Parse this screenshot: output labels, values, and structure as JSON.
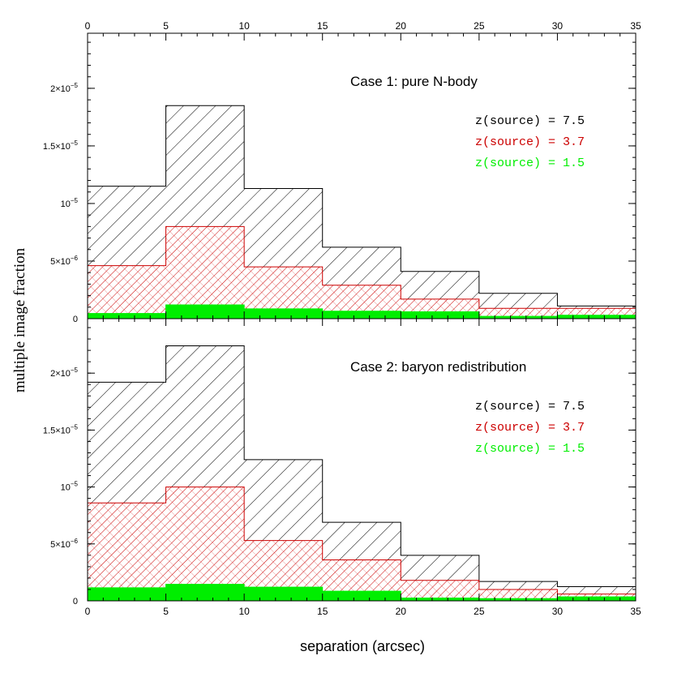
{
  "chart_data": [
    {
      "type": "histogram",
      "panel": "top",
      "title": "Case 1: pure N-body",
      "xlim": [
        0,
        35
      ],
      "ylim": [
        0,
        2.45e-05
      ],
      "xticks": [
        "0",
        "5",
        "10",
        "15",
        "20",
        "25",
        "30",
        "35"
      ],
      "yticks": [
        {
          "mant": "",
          "exp": "",
          "plain": "0",
          "value": 0
        },
        {
          "mant": "5×10",
          "exp": "−6",
          "value": 5e-06
        },
        {
          "mant": "10",
          "exp": "−5",
          "value": 1e-05
        },
        {
          "mant": "1.5×10",
          "exp": "−5",
          "value": 1.5e-05
        },
        {
          "mant": "2×10",
          "exp": "−5",
          "value": 2e-05
        }
      ],
      "bin_edges": [
        0,
        5,
        10,
        15,
        20,
        25,
        30,
        35
      ],
      "series": [
        {
          "name": "z(source) = 7.5",
          "color": "#000000",
          "hatch": "single-diagonal",
          "values": [
            1.15e-05,
            1.85e-05,
            1.13e-05,
            6.2e-06,
            4.1e-06,
            2.2e-06,
            1.1e-06
          ]
        },
        {
          "name": "z(source) = 3.7",
          "color": "#cc0000",
          "hatch": "cross-diagonal",
          "values": [
            4.6e-06,
            8e-06,
            4.5e-06,
            2.9e-06,
            1.7e-06,
            9e-07,
            9e-07
          ]
        },
        {
          "name": "z(source) = 1.5",
          "color": "#00ee00",
          "hatch": "solid",
          "values": [
            4.5e-07,
            1.2e-06,
            8.5e-07,
            6.5e-07,
            6e-07,
            2e-07,
            3e-07
          ]
        }
      ]
    },
    {
      "type": "histogram",
      "panel": "bottom",
      "title": "Case 2: baryon redistribution",
      "xlim": [
        0,
        35
      ],
      "ylim": [
        0,
        2.45e-05
      ],
      "xticks": [
        "0",
        "5",
        "10",
        "15",
        "20",
        "25",
        "30",
        "35"
      ],
      "yticks": [
        {
          "mant": "",
          "exp": "",
          "plain": "0",
          "value": 0
        },
        {
          "mant": "5×10",
          "exp": "−6",
          "value": 5e-06
        },
        {
          "mant": "10",
          "exp": "−5",
          "value": 1e-05
        },
        {
          "mant": "1.5×10",
          "exp": "−5",
          "value": 1.5e-05
        },
        {
          "mant": "2×10",
          "exp": "−5",
          "value": 2e-05
        }
      ],
      "bin_edges": [
        0,
        5,
        10,
        15,
        20,
        25,
        30,
        35
      ],
      "series": [
        {
          "name": "z(source) = 7.5",
          "color": "#000000",
          "hatch": "single-diagonal",
          "values": [
            1.92e-05,
            2.24e-05,
            1.24e-05,
            6.9e-06,
            4e-06,
            1.7e-06,
            1.25e-06
          ]
        },
        {
          "name": "z(source) = 3.7",
          "color": "#cc0000",
          "hatch": "cross-diagonal",
          "values": [
            8.6e-06,
            1e-05,
            5.3e-06,
            3.6e-06,
            1.8e-06,
            1e-06,
            6e-07
          ]
        },
        {
          "name": "z(source) = 1.5",
          "color": "#00ee00",
          "hatch": "solid",
          "values": [
            1.15e-06,
            1.45e-06,
            1.2e-06,
            8.5e-07,
            2.5e-07,
            2e-07,
            3.5e-07
          ]
        }
      ]
    }
  ],
  "xlabel": "separation (arcsec)",
  "ylabel": "multiple image fraction"
}
